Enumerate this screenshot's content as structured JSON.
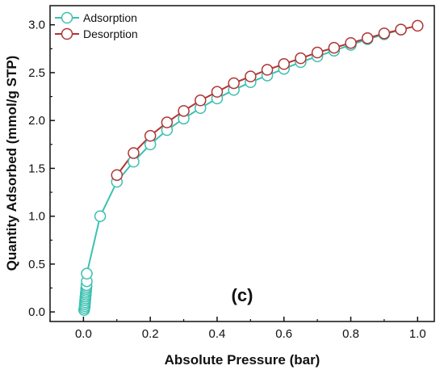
{
  "chart_data": {
    "type": "line",
    "xlabel": "Absolute Pressure (bar)",
    "ylabel": "Quantity Adsorbed (mmol/g STP)",
    "xlim": [
      -0.1,
      1.05
    ],
    "ylim": [
      -0.1,
      3.2
    ],
    "xticks": [
      "0.0",
      "0.2",
      "0.4",
      "0.6",
      "0.8",
      "1.0"
    ],
    "yticks": [
      "0.0",
      "0.5",
      "1.0",
      "1.5",
      "2.0",
      "2.5",
      "3.0"
    ],
    "grid": false,
    "legend_position": "top-left",
    "annotation": "(c)",
    "series": [
      {
        "name": "Adsorption",
        "color": "#3cc0b0",
        "marker": "circle",
        "x": [
          0.002,
          0.003,
          0.004,
          0.004,
          0.005,
          0.005,
          0.006,
          0.006,
          0.007,
          0.007,
          0.008,
          0.008,
          0.009,
          0.009,
          0.01,
          0.01,
          0.05,
          0.1,
          0.15,
          0.2,
          0.25,
          0.3,
          0.35,
          0.4,
          0.45,
          0.5,
          0.55,
          0.6,
          0.65,
          0.7,
          0.75,
          0.8,
          0.85,
          0.9,
          0.95
        ],
        "y": [
          0.02,
          0.04,
          0.06,
          0.08,
          0.1,
          0.12,
          0.14,
          0.16,
          0.18,
          0.2,
          0.22,
          0.24,
          0.26,
          0.28,
          0.32,
          0.4,
          1.0,
          1.36,
          1.57,
          1.75,
          1.9,
          2.02,
          2.13,
          2.23,
          2.32,
          2.4,
          2.47,
          2.54,
          2.61,
          2.67,
          2.73,
          2.79,
          2.85,
          2.9,
          2.95
        ]
      },
      {
        "name": "Desorption",
        "color": "#b03535",
        "marker": "circle",
        "x": [
          1.0,
          0.95,
          0.9,
          0.85,
          0.8,
          0.75,
          0.7,
          0.65,
          0.6,
          0.55,
          0.5,
          0.45,
          0.4,
          0.35,
          0.3,
          0.25,
          0.2,
          0.15,
          0.1
        ],
        "y": [
          2.99,
          2.95,
          2.91,
          2.86,
          2.81,
          2.76,
          2.71,
          2.65,
          2.59,
          2.53,
          2.46,
          2.39,
          2.3,
          2.21,
          2.1,
          1.98,
          1.84,
          1.66,
          1.43
        ]
      }
    ]
  }
}
